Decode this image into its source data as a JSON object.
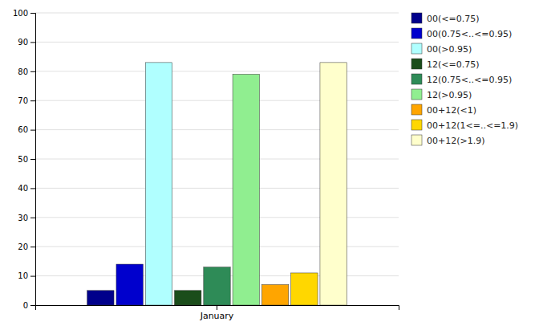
{
  "chart_data": {
    "type": "bar",
    "categories": [
      "January"
    ],
    "series": [
      {
        "name": "00(<=0.75)",
        "color": "#00008B",
        "values": [
          5
        ]
      },
      {
        "name": "00(0.75<..<=0.95)",
        "color": "#0000CD",
        "values": [
          14
        ]
      },
      {
        "name": "00(>0.95)",
        "color": "#B0FFFF",
        "values": [
          83
        ]
      },
      {
        "name": "12(<=0.75)",
        "color": "#1B4D1B",
        "values": [
          5
        ]
      },
      {
        "name": "12(0.75<..<=0.95)",
        "color": "#2E8B57",
        "values": [
          13
        ]
      },
      {
        "name": "12(>0.95)",
        "color": "#90EE90",
        "values": [
          79
        ]
      },
      {
        "name": "00+12(<1)",
        "color": "#FFA500",
        "values": [
          7
        ]
      },
      {
        "name": "00+12(1<=..<=1.9)",
        "color": "#FFD700",
        "values": [
          11
        ]
      },
      {
        "name": "00+12(>1.9)",
        "color": "#FFFFCC",
        "values": [
          83
        ]
      }
    ],
    "ylim": [
      0,
      100
    ],
    "yticks": [
      0,
      10,
      20,
      30,
      40,
      50,
      60,
      70,
      80,
      90,
      100
    ],
    "grid": true,
    "legend": "right"
  }
}
